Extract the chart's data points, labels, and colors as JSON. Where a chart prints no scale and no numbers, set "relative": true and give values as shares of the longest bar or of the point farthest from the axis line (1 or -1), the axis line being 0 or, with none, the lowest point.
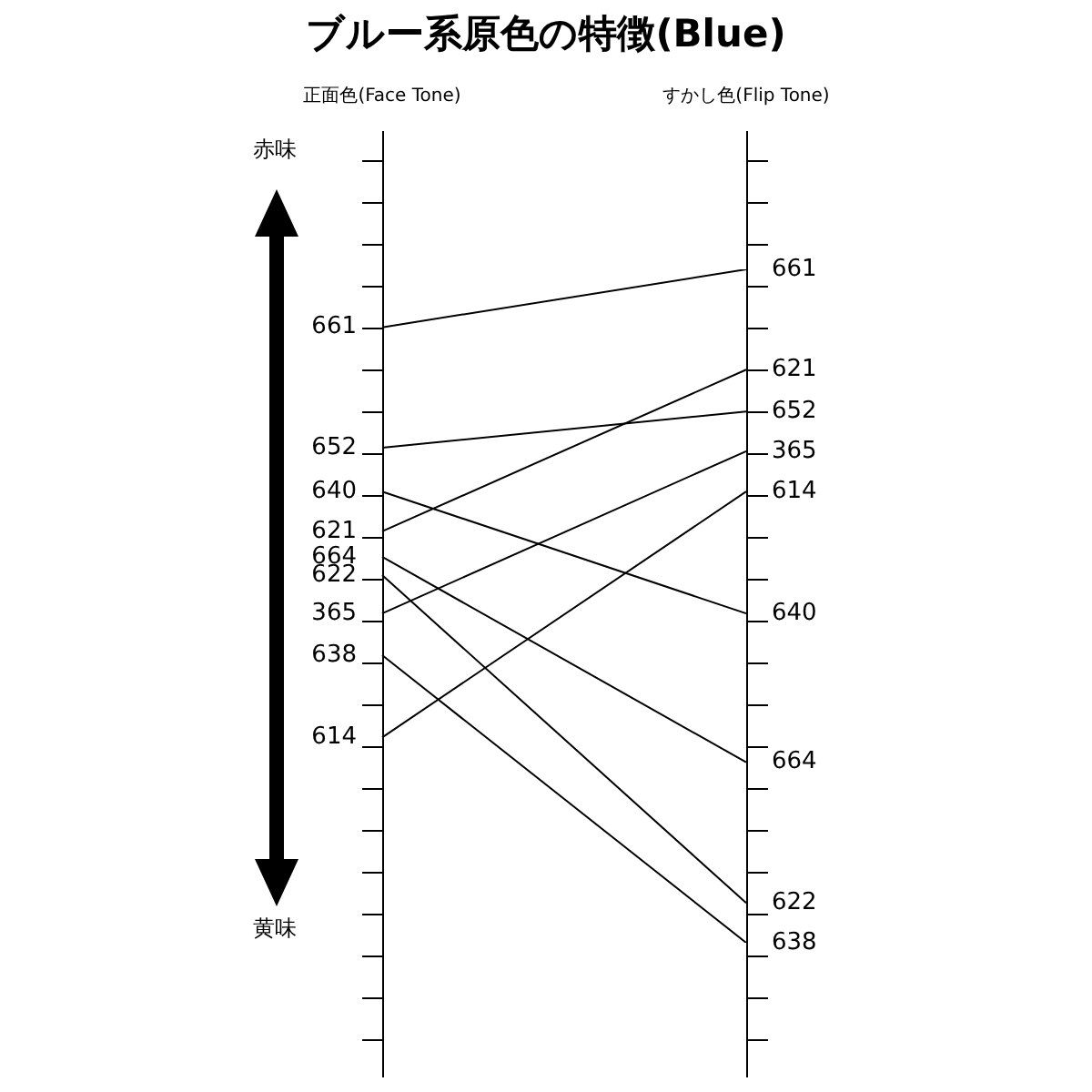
{
  "chart_data": {
    "type": "line",
    "title": "ブルー系原色の特徴(Blue)",
    "relative": true,
    "legend": "right",
    "marker": "none",
    "categories": [
      "正面色(Face Tone)",
      "すかし色(Flip Tone)"
    ],
    "annotations": [
      "赤味",
      "黄味"
    ],
    "series": [
      {
        "name": "661",
        "color": "#000000",
        "values": [
          0.914,
          1
        ]
      },
      {
        "name": "652",
        "color": "#000000",
        "values": [
          0.735,
          0.789
        ]
      },
      {
        "name": "640",
        "color": "#000000",
        "values": [
          0.67,
          0.489
        ]
      },
      {
        "name": "621",
        "color": "#000000",
        "values": [
          0.611,
          0.851
        ]
      },
      {
        "name": "664",
        "color": "#000000",
        "values": [
          0.573,
          0.268
        ]
      },
      {
        "name": "622",
        "color": "#000000",
        "values": [
          0.546,
          0.059
        ]
      },
      {
        "name": "365",
        "color": "#000000",
        "values": [
          0.489,
          0.73
        ]
      },
      {
        "name": "638",
        "color": "#000000",
        "values": [
          0.427,
          0
        ]
      },
      {
        "name": "614",
        "color": "#000000",
        "values": [
          0.305,
          0.67
        ]
      }
    ]
  }
}
